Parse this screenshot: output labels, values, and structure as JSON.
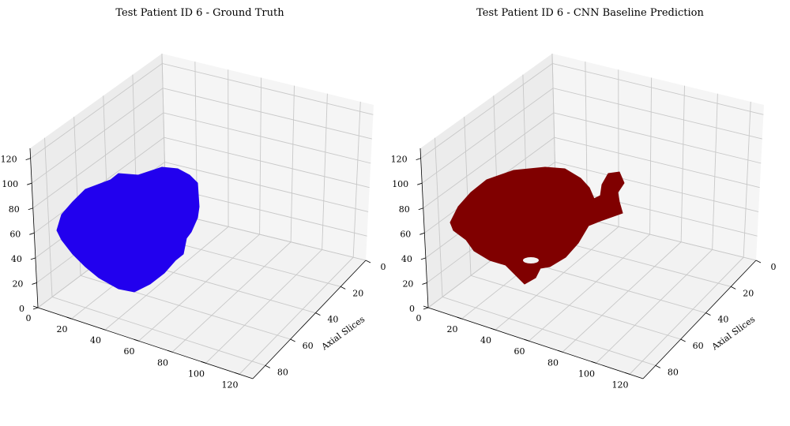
{
  "chart_data": [
    {
      "type": "scatter3d",
      "title": "Test Patient ID 6 - Ground Truth",
      "xlabel": "",
      "ylabel": "Axial Slices",
      "zlabel": "",
      "x_ticks": [
        0,
        20,
        40,
        60,
        80,
        100,
        120
      ],
      "y_ticks": [
        0,
        20,
        40,
        60,
        80
      ],
      "z_ticks": [
        0,
        20,
        40,
        60,
        80,
        100,
        120
      ],
      "xlim": [
        0,
        128
      ],
      "ylim": [
        0,
        90
      ],
      "zlim": [
        0,
        128
      ],
      "grid": true,
      "color": "#2200ee",
      "volume": "single blob-shaped segmentation mask"
    },
    {
      "type": "scatter3d",
      "title": "Test Patient ID 6 - CNN Baseline Prediction",
      "xlabel": "",
      "ylabel": "Axial Slices",
      "zlabel": "",
      "x_ticks": [
        0,
        20,
        40,
        60,
        80,
        100,
        120
      ],
      "y_ticks": [
        0,
        20,
        40,
        60,
        80
      ],
      "z_ticks": [
        0,
        20,
        40,
        60,
        80,
        100,
        120
      ],
      "xlim": [
        0,
        128
      ],
      "ylim": [
        0,
        90
      ],
      "zlim": [
        0,
        128
      ],
      "grid": true,
      "color": "#800000",
      "volume": "predicted segmentation mask with extra protrusions"
    }
  ]
}
